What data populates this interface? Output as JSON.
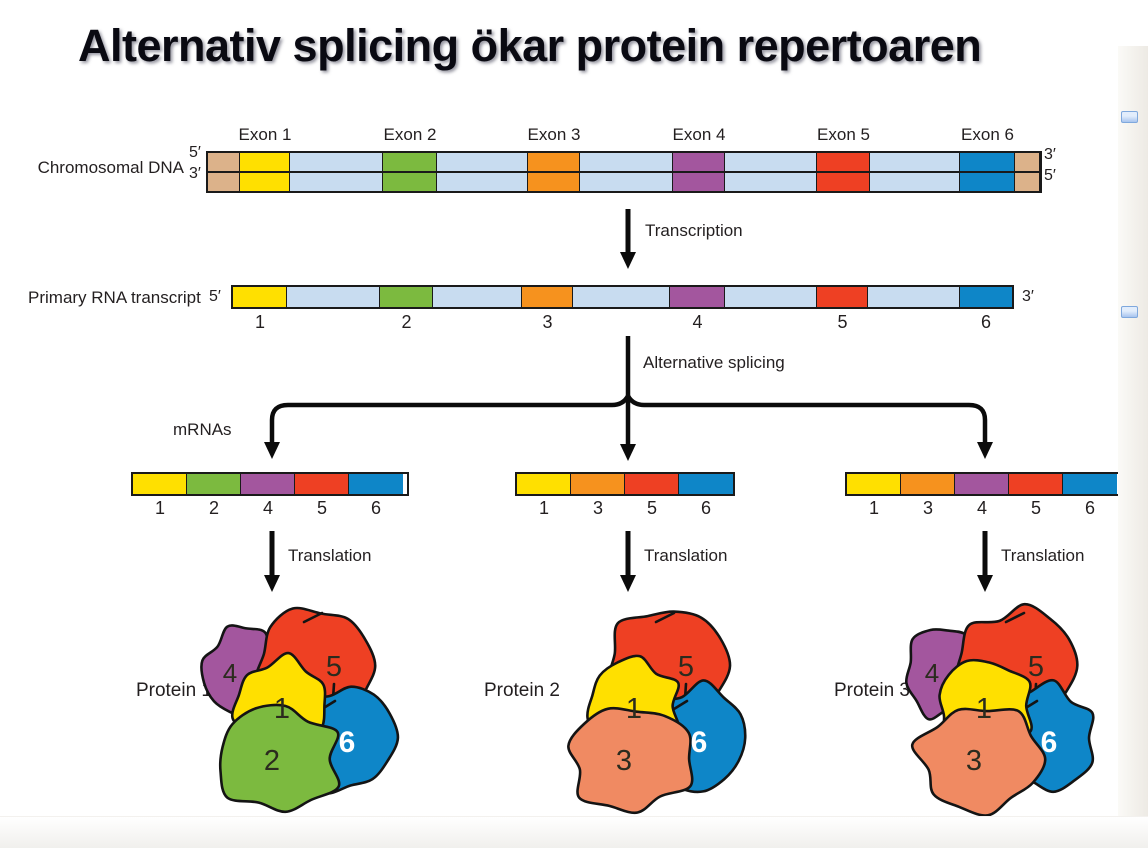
{
  "title": "Alternativ splicing ökar protein repertoaren",
  "palette": {
    "exon1": "#FFE000",
    "exon2": "#7CBA3F",
    "exon3": "#F6921E",
    "exon4": "#A3569E",
    "exon5": "#EE4023",
    "exon6": "#0E86C8",
    "intron": "#C8DCF0",
    "cap": "#DCB28A",
    "salmon": "#F08A62",
    "outline": "#1A1A1A"
  },
  "dna": {
    "label": "Chromosomal DNA",
    "left_top": "5′",
    "left_bottom": "3′",
    "right_top": "3′",
    "right_bottom": "5′",
    "exons": [
      {
        "label": "Exon 1",
        "num": "1",
        "color": "exon1"
      },
      {
        "label": "Exon 2",
        "num": "2",
        "color": "exon2"
      },
      {
        "label": "Exon 3",
        "num": "3",
        "color": "exon3"
      },
      {
        "label": "Exon 4",
        "num": "4",
        "color": "exon4"
      },
      {
        "label": "Exon 5",
        "num": "5",
        "color": "exon5"
      },
      {
        "label": "Exon 6",
        "num": "6",
        "color": "exon6"
      }
    ]
  },
  "transcription_label": "Transcription",
  "rna": {
    "label": "Primary RNA transcript",
    "left": "5′",
    "right": "3′",
    "exons": [
      {
        "num": "1",
        "color": "exon1"
      },
      {
        "num": "2",
        "color": "exon2"
      },
      {
        "num": "3",
        "color": "exon3"
      },
      {
        "num": "4",
        "color": "exon4"
      },
      {
        "num": "5",
        "color": "exon5"
      },
      {
        "num": "6",
        "color": "exon6"
      }
    ]
  },
  "splicing": {
    "label": "Alternative splicing",
    "mrnas_label": "mRNAs"
  },
  "translation_label": "Translation",
  "mrnas": [
    {
      "exons": [
        {
          "num": "1",
          "color": "exon1"
        },
        {
          "num": "2",
          "color": "exon2"
        },
        {
          "num": "4",
          "color": "exon4"
        },
        {
          "num": "5",
          "color": "exon5"
        },
        {
          "num": "6",
          "color": "exon6"
        }
      ]
    },
    {
      "exons": [
        {
          "num": "1",
          "color": "exon1"
        },
        {
          "num": "3",
          "color": "exon3"
        },
        {
          "num": "5",
          "color": "exon5"
        },
        {
          "num": "6",
          "color": "exon6"
        }
      ]
    },
    {
      "exons": [
        {
          "num": "1",
          "color": "exon1"
        },
        {
          "num": "3",
          "color": "exon3"
        },
        {
          "num": "4",
          "color": "exon4"
        },
        {
          "num": "5",
          "color": "exon5"
        },
        {
          "num": "6",
          "color": "exon6"
        }
      ]
    }
  ],
  "proteins": [
    {
      "label": "Protein 1",
      "subunits": [
        {
          "pos": "small",
          "num": "4",
          "color": "exon4"
        },
        {
          "pos": "top",
          "num": "5",
          "color": "exon5"
        },
        {
          "pos": "right",
          "num": "6",
          "color": "exon6"
        },
        {
          "pos": "center",
          "num": "1",
          "color": "exon1"
        },
        {
          "pos": "bottom",
          "num": "2",
          "color": "exon2"
        }
      ]
    },
    {
      "label": "Protein 2",
      "subunits": [
        {
          "pos": "top",
          "num": "5",
          "color": "exon5"
        },
        {
          "pos": "right",
          "num": "6",
          "color": "exon6"
        },
        {
          "pos": "center",
          "num": "1",
          "color": "exon1"
        },
        {
          "pos": "bottom",
          "num": "3",
          "color": "salmon"
        }
      ]
    },
    {
      "label": "Protein 3",
      "subunits": [
        {
          "pos": "small",
          "num": "4",
          "color": "exon4"
        },
        {
          "pos": "top",
          "num": "5",
          "color": "exon5"
        },
        {
          "pos": "right",
          "num": "6",
          "color": "exon6"
        },
        {
          "pos": "center",
          "num": "1",
          "color": "exon1"
        },
        {
          "pos": "bottom",
          "num": "3",
          "color": "salmon"
        }
      ]
    }
  ]
}
